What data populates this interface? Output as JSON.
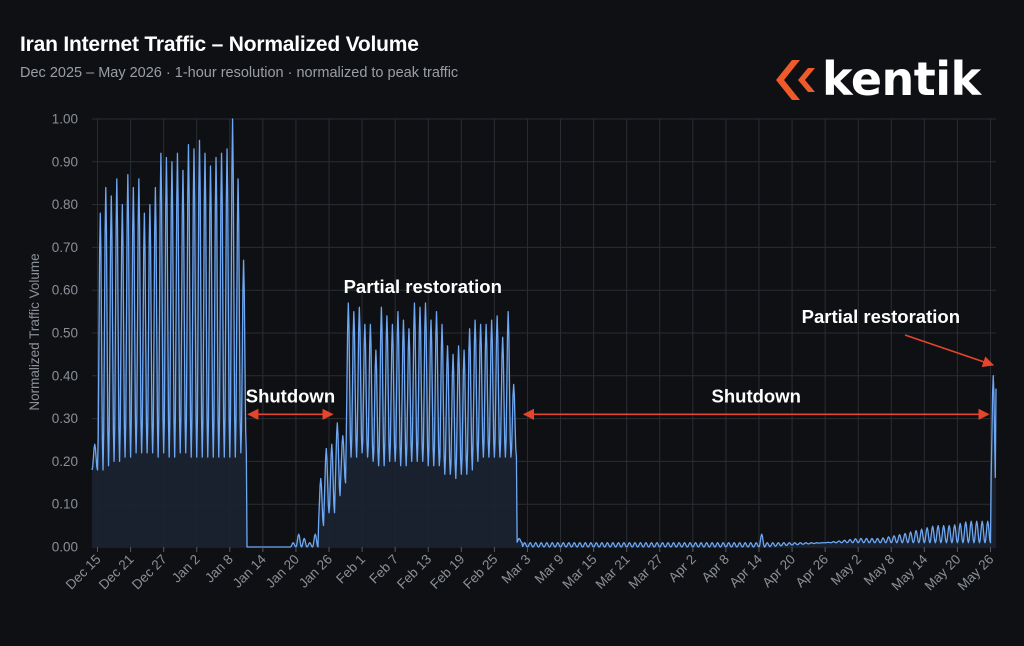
{
  "title": "Iran Internet Traffic – Normalized Volume",
  "subtitle": "Dec 2025 – May 2026  ·  1-hour resolution  ·  normalized to peak traffic",
  "logo_text": "kentik",
  "colors": {
    "background": "#0f1013",
    "series": "#6ea8f5",
    "fill": "#1a2331",
    "grid": "#2a2d33",
    "annotation_arrow": "#e5452c",
    "logo_accent": "#ef5a2a",
    "axis_text": "#8b8f97"
  },
  "chart_data": {
    "type": "area",
    "title": "Iran Internet Traffic – Normalized Volume",
    "ylabel": "Normalized Traffic Volume",
    "xlabel": "",
    "ylim": [
      0,
      1.0
    ],
    "yticks": [
      "0.00",
      "0.10",
      "0.20",
      "0.30",
      "0.40",
      "0.50",
      "0.60",
      "0.70",
      "0.80",
      "0.90",
      "1.00"
    ],
    "x_start": "2025-12-14",
    "x_end": "2026-05-27",
    "xticks": [
      {
        "date": "2025-12-15",
        "label": "Dec 15"
      },
      {
        "date": "2025-12-21",
        "label": "Dec 21"
      },
      {
        "date": "2025-12-27",
        "label": "Dec 27"
      },
      {
        "date": "2026-01-02",
        "label": "Jan 2"
      },
      {
        "date": "2026-01-08",
        "label": "Jan 8"
      },
      {
        "date": "2026-01-14",
        "label": "Jan 14"
      },
      {
        "date": "2026-01-20",
        "label": "Jan 20"
      },
      {
        "date": "2026-01-26",
        "label": "Jan 26"
      },
      {
        "date": "2026-02-01",
        "label": "Feb 1"
      },
      {
        "date": "2026-02-07",
        "label": "Feb 7"
      },
      {
        "date": "2026-02-13",
        "label": "Feb 13"
      },
      {
        "date": "2026-02-19",
        "label": "Feb 19"
      },
      {
        "date": "2026-02-25",
        "label": "Feb 25"
      },
      {
        "date": "2026-03-03",
        "label": "Mar 3"
      },
      {
        "date": "2026-03-09",
        "label": "Mar 9"
      },
      {
        "date": "2026-03-15",
        "label": "Mar 15"
      },
      {
        "date": "2026-03-21",
        "label": "Mar 21"
      },
      {
        "date": "2026-03-27",
        "label": "Mar 27"
      },
      {
        "date": "2026-04-02",
        "label": "Apr 2"
      },
      {
        "date": "2026-04-08",
        "label": "Apr 8"
      },
      {
        "date": "2026-04-14",
        "label": "Apr 14"
      },
      {
        "date": "2026-04-20",
        "label": "Apr 20"
      },
      {
        "date": "2026-04-26",
        "label": "Apr 26"
      },
      {
        "date": "2026-05-02",
        "label": "May 2"
      },
      {
        "date": "2026-05-08",
        "label": "May 8"
      },
      {
        "date": "2026-05-14",
        "label": "May 14"
      },
      {
        "date": "2026-05-20",
        "label": "May 20"
      },
      {
        "date": "2026-05-26",
        "label": "May 26"
      }
    ],
    "grid": true,
    "legend": "none",
    "series": [
      {
        "daily_cycles": [
          {
            "date": "2025-12-14",
            "low": 0.18,
            "high": 0.24
          },
          {
            "date": "2025-12-15",
            "low": 0.18,
            "high": 0.78
          },
          {
            "date": "2025-12-16",
            "low": 0.19,
            "high": 0.84
          },
          {
            "date": "2025-12-17",
            "low": 0.2,
            "high": 0.82
          },
          {
            "date": "2025-12-18",
            "low": 0.2,
            "high": 0.86
          },
          {
            "date": "2025-12-19",
            "low": 0.21,
            "high": 0.8
          },
          {
            "date": "2025-12-20",
            "low": 0.21,
            "high": 0.87
          },
          {
            "date": "2025-12-21",
            "low": 0.22,
            "high": 0.84
          },
          {
            "date": "2025-12-22",
            "low": 0.22,
            "high": 0.86
          },
          {
            "date": "2025-12-23",
            "low": 0.22,
            "high": 0.78
          },
          {
            "date": "2025-12-24",
            "low": 0.22,
            "high": 0.8
          },
          {
            "date": "2025-12-25",
            "low": 0.21,
            "high": 0.84
          },
          {
            "date": "2025-12-26",
            "low": 0.22,
            "high": 0.92
          },
          {
            "date": "2025-12-27",
            "low": 0.21,
            "high": 0.91
          },
          {
            "date": "2025-12-28",
            "low": 0.21,
            "high": 0.9
          },
          {
            "date": "2025-12-29",
            "low": 0.22,
            "high": 0.92
          },
          {
            "date": "2025-12-30",
            "low": 0.22,
            "high": 0.88
          },
          {
            "date": "2025-12-31",
            "low": 0.21,
            "high": 0.94
          },
          {
            "date": "2026-01-01",
            "low": 0.21,
            "high": 0.93
          },
          {
            "date": "2026-01-02",
            "low": 0.21,
            "high": 0.95
          },
          {
            "date": "2026-01-03",
            "low": 0.21,
            "high": 0.92
          },
          {
            "date": "2026-01-04",
            "low": 0.21,
            "high": 0.89
          },
          {
            "date": "2026-01-05",
            "low": 0.21,
            "high": 0.91
          },
          {
            "date": "2026-01-06",
            "low": 0.21,
            "high": 0.92
          },
          {
            "date": "2026-01-07",
            "low": 0.21,
            "high": 0.93
          },
          {
            "date": "2026-01-08",
            "low": 0.21,
            "high": 1.0
          },
          {
            "date": "2026-01-09",
            "low": 0.22,
            "high": 0.86
          },
          {
            "date": "2026-01-10",
            "low": 0.22,
            "high": 0.67
          },
          {
            "date": "2026-01-11",
            "low": 0.0,
            "high": 0.0
          },
          {
            "date": "2026-01-12",
            "low": 0.0,
            "high": 0.0
          },
          {
            "date": "2026-01-13",
            "low": 0.0,
            "high": 0.0
          },
          {
            "date": "2026-01-14",
            "low": 0.0,
            "high": 0.0
          },
          {
            "date": "2026-01-15",
            "low": 0.0,
            "high": 0.0
          },
          {
            "date": "2026-01-16",
            "low": 0.0,
            "high": 0.0
          },
          {
            "date": "2026-01-17",
            "low": 0.0,
            "high": 0.0
          },
          {
            "date": "2026-01-18",
            "low": 0.0,
            "high": 0.0
          },
          {
            "date": "2026-01-19",
            "low": 0.0,
            "high": 0.01
          },
          {
            "date": "2026-01-20",
            "low": 0.0,
            "high": 0.03
          },
          {
            "date": "2026-01-21",
            "low": 0.0,
            "high": 0.02
          },
          {
            "date": "2026-01-22",
            "low": 0.0,
            "high": 0.01
          },
          {
            "date": "2026-01-23",
            "low": 0.0,
            "high": 0.03
          },
          {
            "date": "2026-01-24",
            "low": 0.05,
            "high": 0.16
          },
          {
            "date": "2026-01-25",
            "low": 0.08,
            "high": 0.23
          },
          {
            "date": "2026-01-26",
            "low": 0.08,
            "high": 0.24
          },
          {
            "date": "2026-01-27",
            "low": 0.12,
            "high": 0.29
          },
          {
            "date": "2026-01-28",
            "low": 0.15,
            "high": 0.26
          },
          {
            "date": "2026-01-29",
            "low": 0.21,
            "high": 0.57
          },
          {
            "date": "2026-01-30",
            "low": 0.21,
            "high": 0.55
          },
          {
            "date": "2026-01-31",
            "low": 0.22,
            "high": 0.56
          },
          {
            "date": "2026-02-01",
            "low": 0.21,
            "high": 0.52
          },
          {
            "date": "2026-02-02",
            "low": 0.2,
            "high": 0.52
          },
          {
            "date": "2026-02-03",
            "low": 0.19,
            "high": 0.46
          },
          {
            "date": "2026-02-04",
            "low": 0.19,
            "high": 0.56
          },
          {
            "date": "2026-02-05",
            "low": 0.2,
            "high": 0.54
          },
          {
            "date": "2026-02-06",
            "low": 0.2,
            "high": 0.52
          },
          {
            "date": "2026-02-07",
            "low": 0.19,
            "high": 0.55
          },
          {
            "date": "2026-02-08",
            "low": 0.19,
            "high": 0.53
          },
          {
            "date": "2026-02-09",
            "low": 0.2,
            "high": 0.51
          },
          {
            "date": "2026-02-10",
            "low": 0.2,
            "high": 0.57
          },
          {
            "date": "2026-02-11",
            "low": 0.2,
            "high": 0.56
          },
          {
            "date": "2026-02-12",
            "low": 0.19,
            "high": 0.57
          },
          {
            "date": "2026-02-13",
            "low": 0.19,
            "high": 0.53
          },
          {
            "date": "2026-02-14",
            "low": 0.19,
            "high": 0.55
          },
          {
            "date": "2026-02-15",
            "low": 0.17,
            "high": 0.52
          },
          {
            "date": "2026-02-16",
            "low": 0.17,
            "high": 0.47
          },
          {
            "date": "2026-02-17",
            "low": 0.16,
            "high": 0.45
          },
          {
            "date": "2026-02-18",
            "low": 0.17,
            "high": 0.47
          },
          {
            "date": "2026-02-19",
            "low": 0.17,
            "high": 0.46
          },
          {
            "date": "2026-02-20",
            "low": 0.18,
            "high": 0.51
          },
          {
            "date": "2026-02-21",
            "low": 0.2,
            "high": 0.53
          },
          {
            "date": "2026-02-22",
            "low": 0.21,
            "high": 0.52
          },
          {
            "date": "2026-02-23",
            "low": 0.21,
            "high": 0.52
          },
          {
            "date": "2026-02-24",
            "low": 0.21,
            "high": 0.53
          },
          {
            "date": "2026-02-25",
            "low": 0.21,
            "high": 0.54
          },
          {
            "date": "2026-02-26",
            "low": 0.21,
            "high": 0.49
          },
          {
            "date": "2026-02-27",
            "low": 0.21,
            "high": 0.55
          },
          {
            "date": "2026-02-28",
            "low": 0.21,
            "high": 0.38
          },
          {
            "date": "2026-03-01",
            "low": 0.01,
            "high": 0.02
          },
          {
            "date": "2026-03-02",
            "low": 0.0,
            "high": 0.01
          },
          {
            "date": "2026-03-09",
            "low": 0.0,
            "high": 0.01
          },
          {
            "date": "2026-03-21",
            "low": 0.0,
            "high": 0.01
          },
          {
            "date": "2026-04-02",
            "low": 0.0,
            "high": 0.01
          },
          {
            "date": "2026-04-13",
            "low": 0.0,
            "high": 0.01
          },
          {
            "date": "2026-04-14",
            "low": 0.0,
            "high": 0.03
          },
          {
            "date": "2026-04-15",
            "low": 0.0,
            "high": 0.01
          },
          {
            "date": "2026-04-26",
            "low": 0.01,
            "high": 0.01
          },
          {
            "date": "2026-05-02",
            "low": 0.01,
            "high": 0.02
          },
          {
            "date": "2026-05-06",
            "low": 0.01,
            "high": 0.02
          },
          {
            "date": "2026-05-10",
            "low": 0.01,
            "high": 0.03
          },
          {
            "date": "2026-05-13",
            "low": 0.01,
            "high": 0.04
          },
          {
            "date": "2026-05-16",
            "low": 0.01,
            "high": 0.05
          },
          {
            "date": "2026-05-19",
            "low": 0.01,
            "high": 0.05
          },
          {
            "date": "2026-05-22",
            "low": 0.01,
            "high": 0.06
          },
          {
            "date": "2026-05-25",
            "low": 0.01,
            "high": 0.06
          },
          {
            "date": "2026-05-26",
            "low": 0.13,
            "high": 0.4
          },
          {
            "date": "2026-05-27",
            "low": 0.37,
            "high": 0.42
          }
        ]
      }
    ],
    "annotations": [
      {
        "type": "label",
        "text": "Partial restoration",
        "at_date": "2026-02-12",
        "at_value": 0.6
      },
      {
        "type": "span",
        "text": "Shutdown",
        "from": "2026-01-11",
        "to": "2026-01-27",
        "at_value": 0.31
      },
      {
        "type": "span",
        "text": "Shutdown",
        "from": "2026-03-02",
        "to": "2026-05-26",
        "at_value": 0.31
      },
      {
        "type": "arrow",
        "text": "Partial restoration",
        "to_date": "2026-05-27",
        "to_value": 0.43
      }
    ]
  }
}
